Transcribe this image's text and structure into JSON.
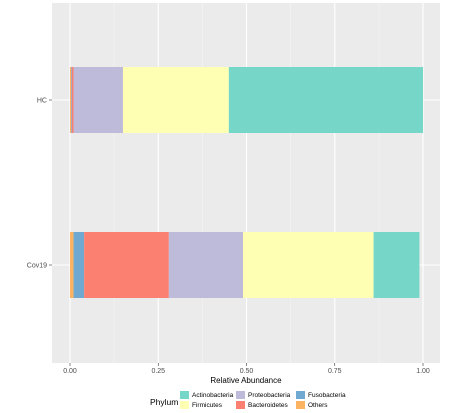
{
  "chart_data": {
    "type": "bar",
    "orientation": "horizontal",
    "stacked": true,
    "title": "",
    "xlabel": "Relative Abundance",
    "ylabel": "",
    "xlim": [
      0,
      1
    ],
    "x_ticks": [
      "0.00",
      "0.25",
      "0.50",
      "0.75",
      "1.00"
    ],
    "x_tick_values": [
      0,
      0.25,
      0.5,
      0.75,
      1.0
    ],
    "categories": [
      "HC",
      "Cov19"
    ],
    "grid": true,
    "legend_title": "Phylum",
    "legend_position": "bottom",
    "stack_order": [
      "Others",
      "Fusobacteria",
      "Bacteroidetes",
      "Proteobacteria",
      "Firmicutes",
      "Actinobacteria"
    ],
    "series": [
      {
        "name": "Actinobacteria",
        "color": "#76d6c8",
        "values": [
          0.55,
          0.13
        ]
      },
      {
        "name": "Firmicutes",
        "color": "#ffffb3",
        "values": [
          0.3,
          0.37
        ]
      },
      {
        "name": "Proteobacteria",
        "color": "#bebada",
        "values": [
          0.14,
          0.21
        ]
      },
      {
        "name": "Bacteroidetes",
        "color": "#fb8072",
        "values": [
          0.005,
          0.24
        ]
      },
      {
        "name": "Fusobacteria",
        "color": "#6fa8d0",
        "values": [
          0.002,
          0.03
        ]
      },
      {
        "name": "Others",
        "color": "#fdb462",
        "values": [
          0.003,
          0.01
        ]
      }
    ]
  }
}
